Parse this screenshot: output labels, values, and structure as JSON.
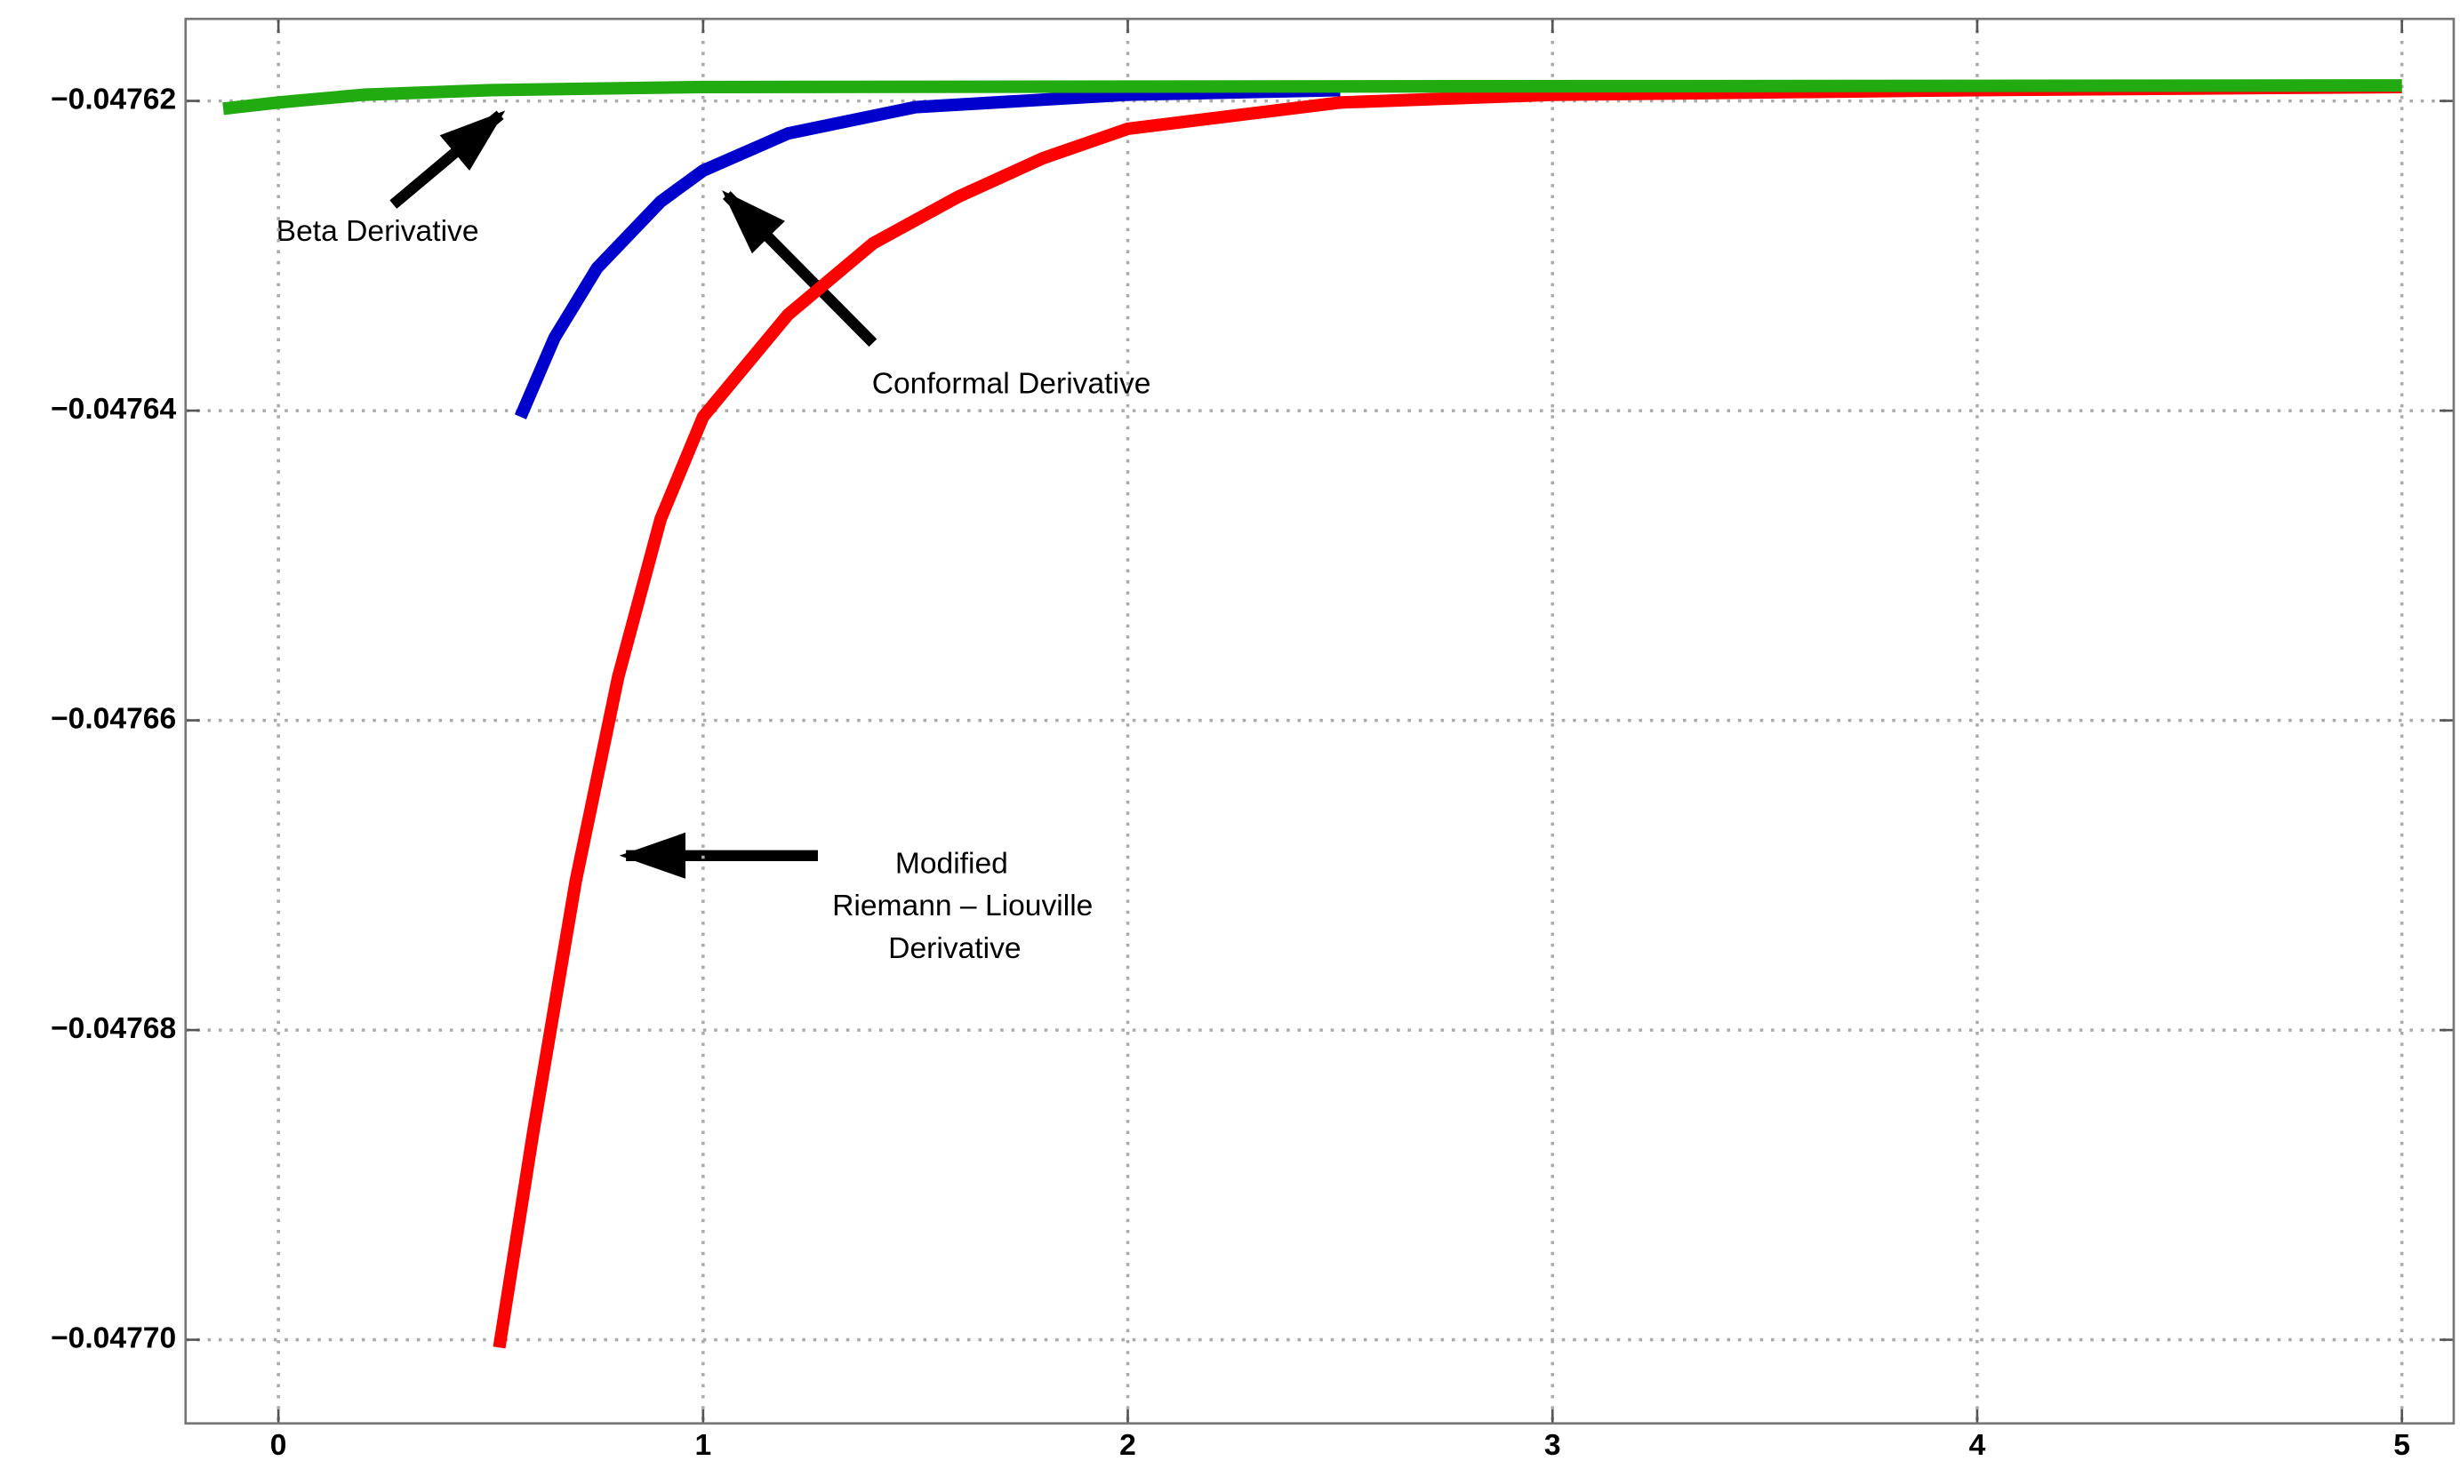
{
  "chart_data": {
    "type": "line",
    "xlim": [
      -0.2185,
      5.122
    ],
    "ylim": [
      -0.0477054,
      -0.0476147
    ],
    "xticks": [
      0,
      1,
      2,
      3,
      4,
      5
    ],
    "yticks": [
      {
        "value": -0.04762,
        "label": "−0.04762"
      },
      {
        "value": -0.04764,
        "label": "−0.04764"
      },
      {
        "value": -0.04766,
        "label": "−0.04766"
      },
      {
        "value": -0.04768,
        "label": "−0.04768"
      },
      {
        "value": -0.0477,
        "label": "−0.04770"
      }
    ],
    "grid": true,
    "series": [
      {
        "color": "#ff0000",
        "x": [
          0.52,
          0.6,
          0.7,
          0.8,
          0.9,
          1.0,
          1.2,
          1.4,
          1.6,
          1.8,
          2.0,
          2.5,
          3.0,
          4.0,
          5.0
        ],
        "values": [
          -0.0477005,
          -0.0476866,
          -0.0476704,
          -0.0476572,
          -0.047647,
          -0.0476404,
          -0.0476338,
          -0.0476292,
          -0.0476262,
          -0.0476237,
          -0.0476218,
          -0.0476201,
          -0.0476196,
          -0.0476193,
          -0.0476191
        ]
      },
      {
        "color": "#0000cc",
        "x": [
          0.57,
          0.65,
          0.75,
          0.9,
          1.0,
          1.2,
          1.5,
          2.0,
          2.5
        ],
        "values": [
          -0.0476404,
          -0.0476353,
          -0.0476308,
          -0.0476265,
          -0.0476245,
          -0.0476221,
          -0.0476204,
          -0.0476196,
          -0.0476193
        ]
      },
      {
        "color": "#22aa11",
        "x": [
          -0.13,
          0.0,
          0.2,
          0.5,
          1.0,
          5.0
        ],
        "values": [
          -0.0476205,
          -0.0476201,
          -0.0476196,
          -0.0476193,
          -0.0476191,
          -0.047619
        ]
      }
    ],
    "annotations": [
      "Beta Derivative",
      "Conformal Derivative",
      "Modified",
      "Riemann – Liouville",
      "Derivative"
    ]
  }
}
